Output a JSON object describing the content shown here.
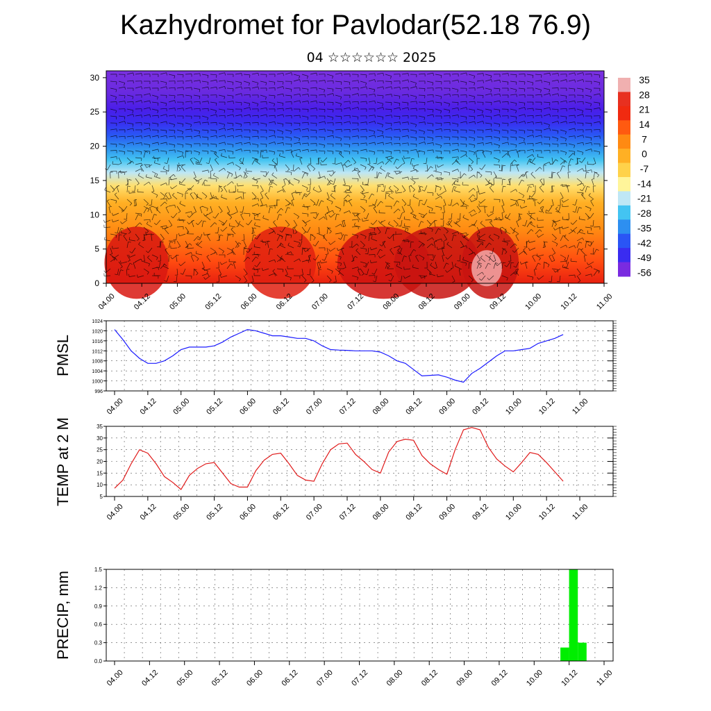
{
  "title": "Kazhydromet for Pavlodar(52.18 76.9)",
  "subtitle": "04 ☆☆☆☆☆☆ 2025",
  "time_ticks": [
    "04.00",
    "04.12",
    "05.00",
    "05.12",
    "06.00",
    "06.12",
    "07.00",
    "07.12",
    "08.00",
    "08.12",
    "09.00",
    "09.12",
    "10.00",
    "10.12",
    "11.00"
  ],
  "chart_data": [
    {
      "type": "heatmap",
      "title": "",
      "description_of_field": "time-height cross section of air temperature with wind barbs",
      "x_ticks": [
        "04.00",
        "04.12",
        "05.00",
        "05.12",
        "06.00",
        "06.12",
        "07.00",
        "07.12",
        "08.00",
        "08.12",
        "09.00",
        "09.12",
        "10.00",
        "10.12",
        "11.00"
      ],
      "y_ticks": [
        0,
        5,
        10,
        15,
        20,
        25,
        30
      ],
      "ylim": [
        0,
        31
      ],
      "colorbar_labels": [
        "35",
        "28",
        "21",
        "14",
        "7",
        "0",
        "-7",
        "-14",
        "-21",
        "-28",
        "-35",
        "-42",
        "-49",
        "-56"
      ],
      "colorbar_range": [
        -60,
        38
      ],
      "colormap": [
        "#7a2be0",
        "#3a2cf0",
        "#2a55f5",
        "#2d8ff0",
        "#43c4f2",
        "#bfe7f5",
        "#fff59a",
        "#ffd24a",
        "#ffb024",
        "#ff8a12",
        "#ff5a10",
        "#f02a10",
        "#d01410",
        "#f2a0a0"
      ]
    },
    {
      "type": "line",
      "ylabel": "PMSL",
      "ylim": [
        996,
        1024
      ],
      "yticks": [
        996,
        1000,
        1004,
        1008,
        1012,
        1016,
        1020,
        1024
      ],
      "color": "#1a1aff",
      "x_hours": [
        0,
        3,
        6,
        9,
        12,
        15,
        18,
        21,
        24,
        27,
        30,
        33,
        36,
        39,
        42,
        45,
        48,
        51,
        54,
        57,
        60,
        63,
        66,
        69,
        72,
        75,
        78,
        81,
        84,
        87,
        90,
        93,
        96,
        99,
        102,
        105,
        108,
        111,
        114,
        117,
        120,
        123,
        126,
        129,
        132,
        135,
        138,
        141,
        144,
        147,
        150,
        153,
        156,
        159,
        162
      ],
      "values": [
        1020.5,
        1016.5,
        1012,
        1009,
        1007,
        1007,
        1008,
        1010,
        1012.5,
        1013.5,
        1013.5,
        1013.5,
        1014,
        1015.5,
        1017.5,
        1019,
        1020.5,
        1020,
        1019,
        1018,
        1018,
        1017.5,
        1017,
        1017,
        1016,
        1014,
        1012.5,
        1012.3,
        1012.2,
        1012,
        1012,
        1012,
        1011.5,
        1010,
        1008,
        1007,
        1004.5,
        1002,
        1002.2,
        1002.4,
        1001.5,
        1000.3,
        999.5,
        1003,
        1005,
        1007.5,
        1010,
        1012,
        1012,
        1012.5,
        1013,
        1015,
        1016,
        1017,
        1018.5
      ]
    },
    {
      "type": "line",
      "ylabel": "TEMP at 2 M",
      "ylim": [
        5,
        35
      ],
      "yticks": [
        5,
        10,
        15,
        20,
        25,
        30,
        35
      ],
      "color": "#e01a1a",
      "x_hours": [
        0,
        3,
        6,
        9,
        12,
        15,
        18,
        21,
        24,
        27,
        30,
        33,
        36,
        39,
        42,
        45,
        48,
        51,
        54,
        57,
        60,
        63,
        66,
        69,
        72,
        75,
        78,
        81,
        84,
        87,
        90,
        93,
        96,
        99,
        102,
        105,
        108,
        111,
        114,
        117,
        120,
        123,
        126,
        129,
        132,
        135,
        138,
        141,
        144,
        147,
        150,
        153,
        156,
        159,
        162
      ],
      "values": [
        8.5,
        12,
        19,
        25,
        23.5,
        19,
        13.5,
        11,
        8,
        14,
        17,
        19,
        19.5,
        15,
        10.5,
        9,
        9,
        16,
        20.5,
        23,
        23.5,
        19,
        14,
        12,
        11.5,
        19,
        25,
        27.5,
        27.8,
        23,
        20,
        16.5,
        15,
        24,
        28.5,
        29.5,
        29,
        22.5,
        19,
        16.5,
        14.5,
        25,
        33.5,
        34.5,
        33.5,
        26,
        21,
        18,
        15.5,
        19.5,
        23.8,
        23,
        19.5,
        15.5,
        11.5
      ]
    },
    {
      "type": "bar",
      "ylabel": "PRECIP, mm",
      "ylim": [
        0,
        1.5
      ],
      "yticks": [
        "0.0",
        "0.3",
        "0.6",
        "0.9",
        "1.2",
        "1.5"
      ],
      "color": "#00ee00",
      "bars": [
        {
          "x_start_hour": 153,
          "x_end_hour": 156,
          "value": 0.22
        },
        {
          "x_start_hour": 156,
          "x_end_hour": 159,
          "value": 1.5
        },
        {
          "x_start_hour": 159,
          "x_end_hour": 162,
          "value": 0.3
        }
      ]
    }
  ]
}
